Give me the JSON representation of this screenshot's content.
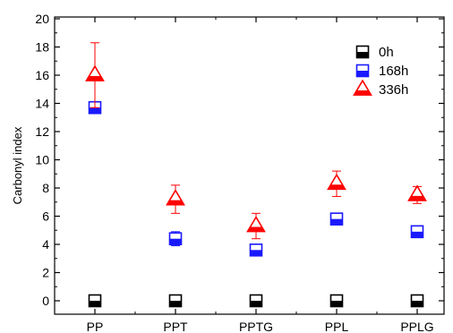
{
  "chart_data": {
    "type": "scatter",
    "title": "",
    "xlabel": "",
    "ylabel": "Carbonyl index",
    "categories": [
      "PP",
      "PPT",
      "PPTG",
      "PPL",
      "PPLG"
    ],
    "ylim": [
      -1,
      20
    ],
    "yticks": [
      0,
      2,
      4,
      6,
      8,
      10,
      12,
      14,
      16,
      18,
      20
    ],
    "grid": false,
    "legend_position": "top-right",
    "series": [
      {
        "name": "0h",
        "marker": "square-half",
        "color": "#000000",
        "values": [
          0,
          0,
          0,
          0,
          0
        ],
        "error": [
          0,
          0,
          0,
          0,
          0
        ]
      },
      {
        "name": "168h",
        "marker": "square-half",
        "color": "#1a1aff",
        "values": [
          13.7,
          4.4,
          3.6,
          5.8,
          4.9
        ],
        "error": [
          0.3,
          0.5,
          0.3,
          0.4,
          0.3
        ]
      },
      {
        "name": "336h",
        "marker": "triangle-half",
        "color": "#ff0000",
        "values": [
          16.0,
          7.2,
          5.3,
          8.3,
          7.5
        ],
        "error": [
          2.3,
          1.0,
          0.9,
          0.9,
          0.6
        ]
      }
    ]
  }
}
